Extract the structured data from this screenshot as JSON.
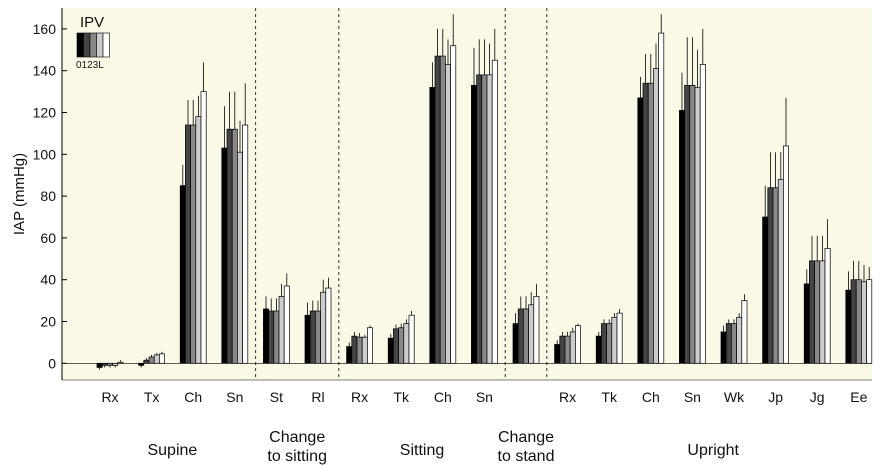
{
  "chart_data": {
    "type": "bar",
    "ylabel": "IAP (mmHg)",
    "ylim": [
      -8,
      170
    ],
    "yticks": [
      0,
      20,
      40,
      60,
      80,
      100,
      120,
      140,
      160
    ],
    "grid": false,
    "legend": {
      "title": "IPV",
      "keys": "0123L",
      "placement": "top-left",
      "series_colors": [
        "#000000",
        "#444444",
        "#888888",
        "#cccccc",
        "#ffffff"
      ]
    },
    "background_color": "#fbf8e6",
    "categories": [
      "Rx",
      "Tx",
      "Ch",
      "Sn",
      "St",
      "Rl",
      "Rx",
      "Tk",
      "Ch",
      "Sn",
      "",
      "Rx",
      "Tk",
      "Ch",
      "Sn",
      "Wk",
      "Jp",
      "Jg",
      "Ee"
    ],
    "values": [
      [
        -2,
        -1,
        -1,
        -1,
        0.5
      ],
      [
        -1,
        1.5,
        3,
        4,
        4.5
      ],
      [
        85,
        114,
        114,
        118,
        130
      ],
      [
        103,
        112,
        112,
        101,
        114
      ],
      [
        26,
        25,
        25,
        32,
        37
      ],
      [
        23,
        25,
        25,
        34,
        36
      ],
      [
        8,
        13,
        12.5,
        12.5,
        17
      ],
      [
        12,
        16.5,
        17,
        19,
        23
      ],
      [
        132,
        147,
        147,
        143,
        152
      ],
      [
        133,
        138,
        138,
        138,
        145
      ],
      [
        19,
        26,
        26,
        28,
        32
      ],
      [
        9,
        13,
        13,
        15,
        18
      ],
      [
        13,
        19,
        19,
        22,
        24
      ],
      [
        127,
        134,
        134,
        141,
        158
      ],
      [
        121,
        133,
        133,
        132,
        143
      ],
      [
        15,
        19,
        19,
        22,
        30
      ],
      [
        70,
        84,
        84,
        88,
        104
      ],
      [
        38,
        49,
        49,
        49,
        55
      ],
      [
        35,
        40,
        40,
        39,
        40
      ]
    ],
    "errors": [
      [
        1,
        1,
        1,
        1,
        1
      ],
      [
        1,
        1,
        1,
        1,
        1
      ],
      [
        10,
        12,
        12,
        10,
        14
      ],
      [
        20,
        18,
        18,
        15,
        20
      ],
      [
        6,
        6,
        6,
        6,
        6
      ],
      [
        6,
        5,
        5,
        6,
        5
      ],
      [
        2,
        2,
        2,
        1,
        1
      ],
      [
        2,
        2,
        2,
        2,
        2
      ],
      [
        12,
        13,
        13,
        12,
        15
      ],
      [
        18,
        17,
        17,
        15,
        15
      ],
      [
        5,
        6,
        6,
        6,
        6
      ],
      [
        2,
        2,
        2,
        2,
        1
      ],
      [
        2,
        2,
        2,
        2,
        2
      ],
      [
        10,
        14,
        14,
        12,
        9
      ],
      [
        18,
        23,
        23,
        18,
        17
      ],
      [
        3,
        2,
        2,
        2,
        3
      ],
      [
        15,
        17,
        17,
        13,
        23
      ],
      [
        7,
        12,
        12,
        12,
        14
      ],
      [
        9,
        9,
        9,
        8,
        6
      ]
    ],
    "groups": [
      {
        "label": "Supine",
        "lines": [
          "Supine"
        ],
        "start": 0,
        "end": 3
      },
      {
        "label": "Change to sitting",
        "lines": [
          "Change",
          "to sitting"
        ],
        "start": 4,
        "end": 5
      },
      {
        "label": "Sitting",
        "lines": [
          "Sitting"
        ],
        "start": 6,
        "end": 9
      },
      {
        "label": "Change to stand",
        "lines": [
          "Change",
          "to stand"
        ],
        "start": 10,
        "end": 10
      },
      {
        "label": "Upright",
        "lines": [
          "Upright"
        ],
        "start": 11,
        "end": 18
      }
    ]
  }
}
